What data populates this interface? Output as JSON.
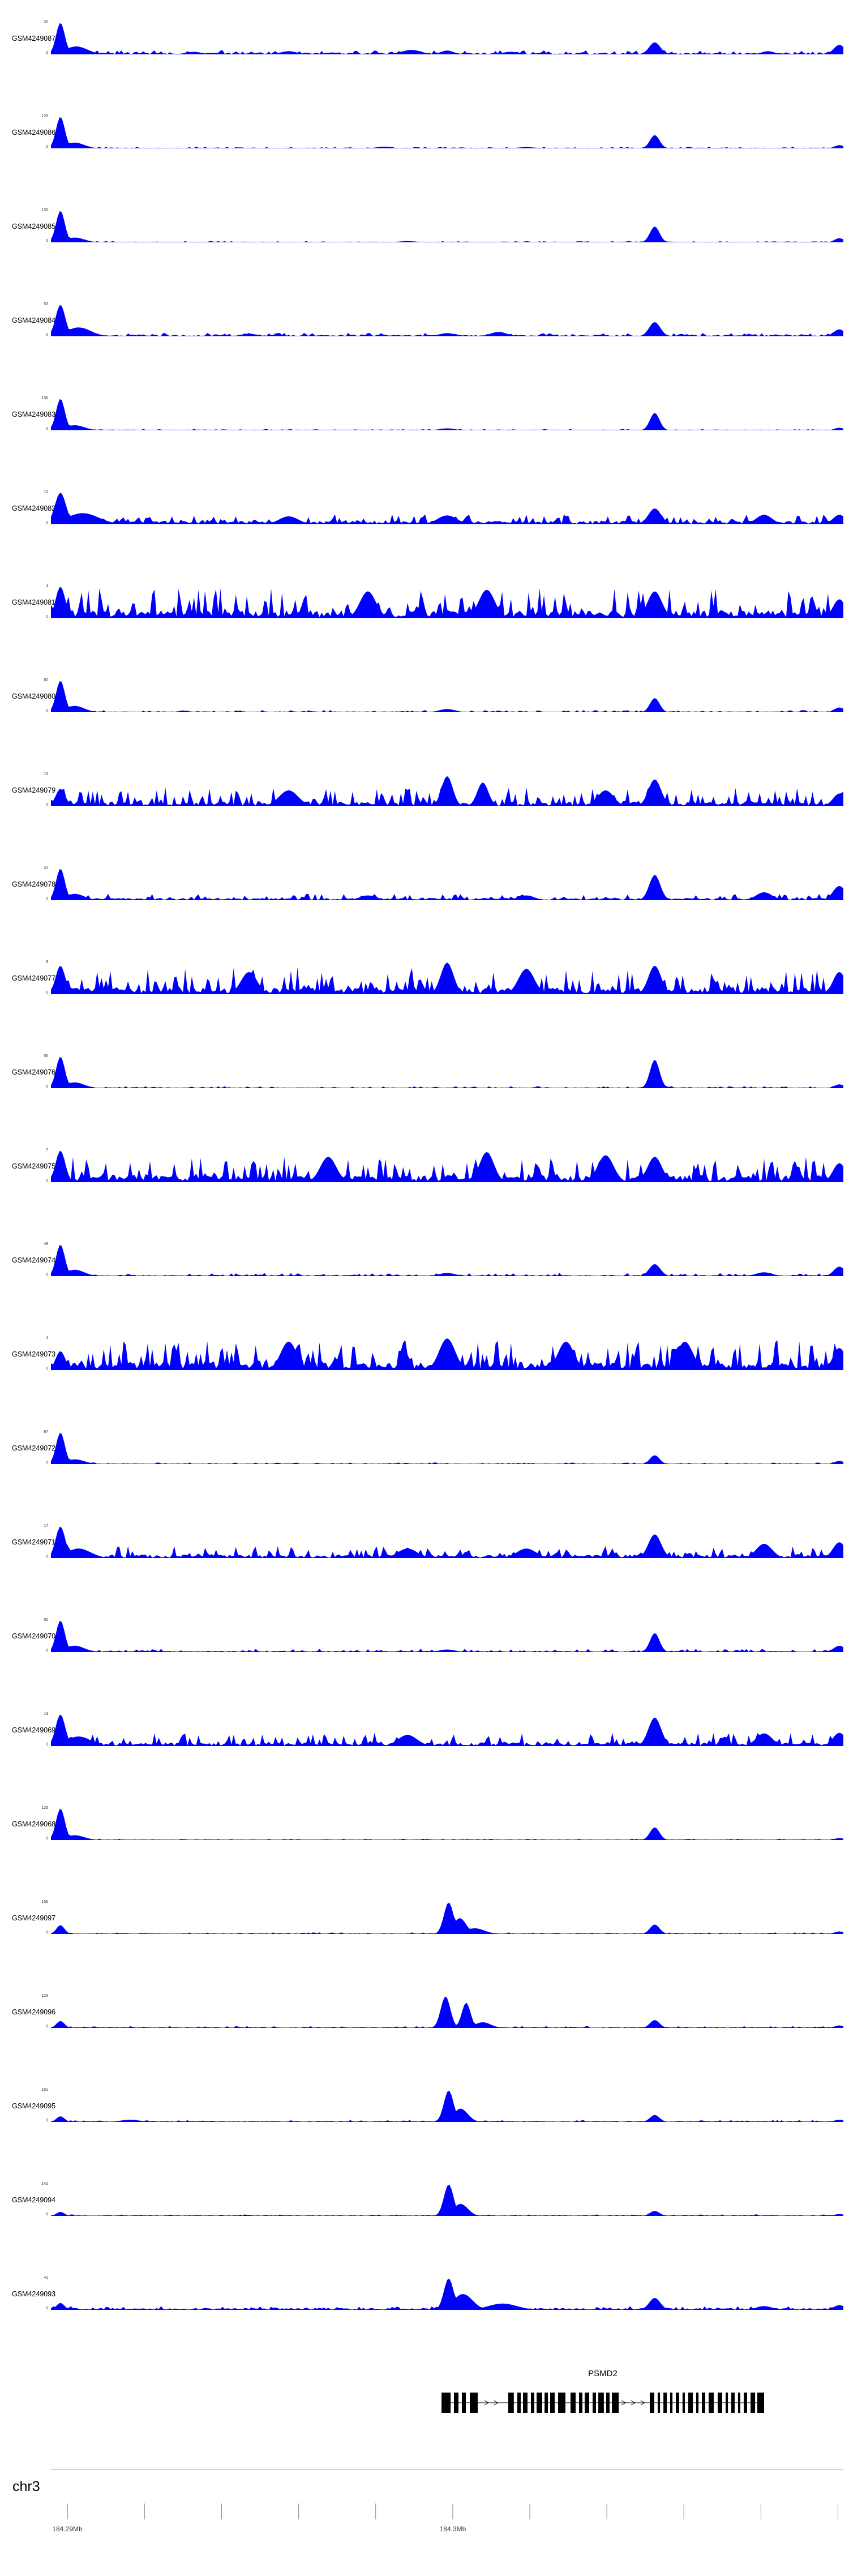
{
  "chart_data": {
    "type": "area",
    "description": "Stacked genome-browser coverage tracks (blue filled histograms) over chr3 around the PSMD2 locus, with a gene model track and genome coordinate axis at the bottom.",
    "signal_color": "#0000FF",
    "genome": {
      "chromosome": "chr3",
      "window_mb": [
        184.28957,
        184.31014
      ],
      "axis_ticks_mb": [
        184.29,
        184.292,
        184.294,
        184.296,
        184.298,
        184.3,
        184.302,
        184.304,
        184.306,
        184.308,
        184.31
      ],
      "axis_labels": [
        {
          "pos_mb": 184.29,
          "label": "184.29Mb"
        },
        {
          "pos_mb": 184.3,
          "label": "184.3Mb"
        }
      ]
    },
    "tracks": [
      {
        "label": "GSM4249087",
        "ymax": 30,
        "ymin": 0,
        "noise": 0.05,
        "spikes": 0.13,
        "seed": 101,
        "peaks": [
          [
            0.012,
            1.0,
            0.0055
          ],
          [
            0.032,
            0.25,
            0.014
          ],
          [
            0.18,
            0.08,
            0.01
          ],
          [
            0.3,
            0.1,
            0.01
          ],
          [
            0.455,
            0.14,
            0.012
          ],
          [
            0.5,
            0.12,
            0.008
          ],
          [
            0.58,
            0.08,
            0.01
          ],
          [
            0.762,
            0.38,
            0.007
          ],
          [
            0.905,
            0.1,
            0.008
          ],
          [
            0.995,
            0.3,
            0.007
          ]
        ]
      },
      {
        "label": "GSM4249086",
        "ymax": 129,
        "ymin": 0,
        "noise": 0.022,
        "spikes": 0.05,
        "seed": 102,
        "peaks": [
          [
            0.012,
            1.0,
            0.0055
          ],
          [
            0.03,
            0.18,
            0.012
          ],
          [
            0.42,
            0.05,
            0.01
          ],
          [
            0.6,
            0.04,
            0.01
          ],
          [
            0.762,
            0.42,
            0.006
          ],
          [
            0.995,
            0.1,
            0.006
          ]
        ]
      },
      {
        "label": "GSM4249085",
        "ymax": 135,
        "ymin": 0,
        "noise": 0.02,
        "spikes": 0.04,
        "seed": 103,
        "peaks": [
          [
            0.012,
            1.0,
            0.0055
          ],
          [
            0.03,
            0.15,
            0.012
          ],
          [
            0.45,
            0.04,
            0.01
          ],
          [
            0.762,
            0.5,
            0.006
          ],
          [
            0.995,
            0.13,
            0.006
          ]
        ]
      },
      {
        "label": "GSM4249084",
        "ymax": 53,
        "ymin": 0,
        "noise": 0.045,
        "spikes": 0.11,
        "seed": 104,
        "peaks": [
          [
            0.012,
            1.0,
            0.006
          ],
          [
            0.035,
            0.28,
            0.015
          ],
          [
            0.25,
            0.08,
            0.01
          ],
          [
            0.5,
            0.1,
            0.01
          ],
          [
            0.565,
            0.14,
            0.01
          ],
          [
            0.762,
            0.45,
            0.007
          ],
          [
            0.995,
            0.22,
            0.007
          ]
        ]
      },
      {
        "label": "GSM4249083",
        "ymax": 136,
        "ymin": 0,
        "noise": 0.02,
        "spikes": 0.045,
        "seed": 105,
        "peaks": [
          [
            0.012,
            1.0,
            0.0055
          ],
          [
            0.03,
            0.16,
            0.012
          ],
          [
            0.5,
            0.06,
            0.01
          ],
          [
            0.762,
            0.55,
            0.006
          ],
          [
            0.995,
            0.08,
            0.006
          ]
        ]
      },
      {
        "label": "GSM4249082",
        "ymax": 12,
        "ymin": 0,
        "noise": 0.11,
        "spikes": 0.32,
        "seed": 106,
        "peaks": [
          [
            0.012,
            1.0,
            0.007
          ],
          [
            0.04,
            0.35,
            0.02
          ],
          [
            0.3,
            0.25,
            0.012
          ],
          [
            0.5,
            0.28,
            0.012
          ],
          [
            0.762,
            0.5,
            0.008
          ],
          [
            0.9,
            0.3,
            0.01
          ],
          [
            0.995,
            0.3,
            0.008
          ]
        ]
      },
      {
        "label": "GSM4249081",
        "ymax": 4,
        "ymin": 0,
        "noise": 0.25,
        "spikes": 0.95,
        "seed": 107,
        "peaks": [
          [
            0.012,
            1.0,
            0.006
          ],
          [
            0.4,
            0.85,
            0.01
          ],
          [
            0.55,
            0.9,
            0.01
          ],
          [
            0.762,
            0.85,
            0.009
          ],
          [
            0.995,
            0.6,
            0.008
          ]
        ]
      },
      {
        "label": "GSM4249080",
        "ymax": 80,
        "ymin": 0,
        "noise": 0.028,
        "spikes": 0.07,
        "seed": 108,
        "peaks": [
          [
            0.012,
            1.0,
            0.0055
          ],
          [
            0.03,
            0.2,
            0.012
          ],
          [
            0.5,
            0.1,
            0.01
          ],
          [
            0.762,
            0.45,
            0.006
          ],
          [
            0.995,
            0.15,
            0.006
          ]
        ]
      },
      {
        "label": "GSM4249079",
        "ymax": 10,
        "ymin": 0,
        "noise": 0.14,
        "spikes": 0.6,
        "seed": 109,
        "peaks": [
          [
            0.012,
            0.55,
            0.006
          ],
          [
            0.3,
            0.5,
            0.012
          ],
          [
            0.5,
            0.95,
            0.007
          ],
          [
            0.545,
            0.75,
            0.007
          ],
          [
            0.7,
            0.5,
            0.01
          ],
          [
            0.762,
            0.85,
            0.008
          ],
          [
            0.995,
            0.4,
            0.008
          ]
        ]
      },
      {
        "label": "GSM4249078",
        "ymax": 41,
        "ymin": 0,
        "noise": 0.07,
        "spikes": 0.2,
        "seed": 110,
        "peaks": [
          [
            0.012,
            1.0,
            0.0055
          ],
          [
            0.03,
            0.2,
            0.012
          ],
          [
            0.4,
            0.15,
            0.01
          ],
          [
            0.6,
            0.15,
            0.01
          ],
          [
            0.762,
            0.8,
            0.007
          ],
          [
            0.9,
            0.25,
            0.01
          ],
          [
            0.995,
            0.45,
            0.008
          ]
        ]
      },
      {
        "label": "GSM4249077",
        "ymax": 9,
        "ymin": 0,
        "noise": 0.2,
        "spikes": 0.85,
        "seed": 111,
        "peaks": [
          [
            0.012,
            0.9,
            0.006
          ],
          [
            0.25,
            0.7,
            0.01
          ],
          [
            0.5,
            1.0,
            0.008
          ],
          [
            0.6,
            0.8,
            0.01
          ],
          [
            0.762,
            0.9,
            0.008
          ],
          [
            0.995,
            0.7,
            0.008
          ]
        ]
      },
      {
        "label": "GSM4249076",
        "ymax": 55,
        "ymin": 0,
        "noise": 0.025,
        "spikes": 0.06,
        "seed": 112,
        "peaks": [
          [
            0.012,
            1.0,
            0.0055
          ],
          [
            0.03,
            0.18,
            0.012
          ],
          [
            0.762,
            0.9,
            0.006
          ],
          [
            0.995,
            0.12,
            0.006
          ]
        ]
      },
      {
        "label": "GSM4249075",
        "ymax": 7,
        "ymin": 0,
        "noise": 0.22,
        "spikes": 0.8,
        "seed": 113,
        "peaks": [
          [
            0.012,
            1.0,
            0.006
          ],
          [
            0.35,
            0.8,
            0.01
          ],
          [
            0.55,
            0.95,
            0.009
          ],
          [
            0.7,
            0.85,
            0.01
          ],
          [
            0.762,
            0.8,
            0.009
          ],
          [
            0.995,
            0.6,
            0.008
          ]
        ]
      },
      {
        "label": "GSM4249074",
        "ymax": 49,
        "ymin": 0,
        "noise": 0.035,
        "spikes": 0.1,
        "seed": 114,
        "peaks": [
          [
            0.012,
            1.0,
            0.0055
          ],
          [
            0.03,
            0.2,
            0.012
          ],
          [
            0.5,
            0.1,
            0.01
          ],
          [
            0.762,
            0.38,
            0.007
          ],
          [
            0.9,
            0.12,
            0.01
          ],
          [
            0.995,
            0.3,
            0.007
          ]
        ]
      },
      {
        "label": "GSM4249073",
        "ymax": 4,
        "ymin": 0,
        "noise": 0.27,
        "spikes": 0.95,
        "seed": 115,
        "peaks": [
          [
            0.012,
            0.6,
            0.006
          ],
          [
            0.3,
            0.9,
            0.01
          ],
          [
            0.5,
            1.0,
            0.01
          ],
          [
            0.65,
            0.9,
            0.01
          ],
          [
            0.8,
            0.9,
            0.01
          ],
          [
            0.995,
            0.7,
            0.008
          ]
        ]
      },
      {
        "label": "GSM4249072",
        "ymax": 97,
        "ymin": 0,
        "noise": 0.02,
        "spikes": 0.05,
        "seed": 116,
        "peaks": [
          [
            0.012,
            1.0,
            0.0055
          ],
          [
            0.03,
            0.15,
            0.012
          ],
          [
            0.762,
            0.28,
            0.006
          ],
          [
            0.995,
            0.1,
            0.006
          ]
        ]
      },
      {
        "label": "GSM4249071",
        "ymax": 17,
        "ymin": 0,
        "noise": 0.11,
        "spikes": 0.38,
        "seed": 117,
        "peaks": [
          [
            0.012,
            1.0,
            0.006
          ],
          [
            0.035,
            0.3,
            0.015
          ],
          [
            0.45,
            0.3,
            0.012
          ],
          [
            0.6,
            0.3,
            0.012
          ],
          [
            0.762,
            0.75,
            0.008
          ],
          [
            0.9,
            0.45,
            0.01
          ],
          [
            0.995,
            0.5,
            0.008
          ]
        ]
      },
      {
        "label": "GSM4249070",
        "ymax": 50,
        "ymin": 0,
        "noise": 0.035,
        "spikes": 0.1,
        "seed": 118,
        "peaks": [
          [
            0.012,
            1.0,
            0.0055
          ],
          [
            0.03,
            0.2,
            0.012
          ],
          [
            0.5,
            0.08,
            0.01
          ],
          [
            0.762,
            0.6,
            0.006
          ],
          [
            0.995,
            0.2,
            0.007
          ]
        ]
      },
      {
        "label": "GSM4249069",
        "ymax": 13,
        "ymin": 0,
        "noise": 0.11,
        "spikes": 0.42,
        "seed": 119,
        "peaks": [
          [
            0.012,
            1.0,
            0.006
          ],
          [
            0.035,
            0.3,
            0.015
          ],
          [
            0.45,
            0.35,
            0.012
          ],
          [
            0.762,
            0.9,
            0.008
          ],
          [
            0.9,
            0.4,
            0.01
          ],
          [
            0.995,
            0.42,
            0.008
          ]
        ]
      },
      {
        "label": "GSM4249068",
        "ymax": 125,
        "ymin": 0,
        "noise": 0.018,
        "spikes": 0.04,
        "seed": 120,
        "peaks": [
          [
            0.012,
            1.0,
            0.0055
          ],
          [
            0.03,
            0.15,
            0.012
          ],
          [
            0.762,
            0.4,
            0.006
          ],
          [
            0.995,
            0.06,
            0.006
          ]
        ]
      },
      {
        "label": "GSM4249097",
        "ymax": 156,
        "ymin": 0,
        "noise": 0.022,
        "spikes": 0.05,
        "seed": 121,
        "peaks": [
          [
            0.012,
            0.28,
            0.005
          ],
          [
            0.502,
            1.0,
            0.006
          ],
          [
            0.516,
            0.5,
            0.008
          ],
          [
            0.535,
            0.18,
            0.012
          ],
          [
            0.762,
            0.3,
            0.006
          ],
          [
            0.995,
            0.08,
            0.006
          ]
        ]
      },
      {
        "label": "GSM4249096",
        "ymax": 123,
        "ymin": 0,
        "noise": 0.028,
        "spikes": 0.06,
        "seed": 122,
        "peaks": [
          [
            0.012,
            0.22,
            0.005
          ],
          [
            0.498,
            1.0,
            0.006
          ],
          [
            0.524,
            0.8,
            0.0055
          ],
          [
            0.545,
            0.18,
            0.01
          ],
          [
            0.762,
            0.25,
            0.006
          ],
          [
            0.995,
            0.08,
            0.006
          ]
        ]
      },
      {
        "label": "GSM4249095",
        "ymax": 151,
        "ymin": 0,
        "noise": 0.028,
        "spikes": 0.06,
        "seed": 123,
        "peaks": [
          [
            0.012,
            0.18,
            0.005
          ],
          [
            0.1,
            0.07,
            0.012
          ],
          [
            0.502,
            1.0,
            0.006
          ],
          [
            0.517,
            0.42,
            0.009
          ],
          [
            0.762,
            0.22,
            0.006
          ],
          [
            0.995,
            0.07,
            0.006
          ]
        ]
      },
      {
        "label": "GSM4249094",
        "ymax": 142,
        "ymin": 0,
        "noise": 0.024,
        "spikes": 0.05,
        "seed": 124,
        "peaks": [
          [
            0.012,
            0.13,
            0.005
          ],
          [
            0.502,
            1.0,
            0.006
          ],
          [
            0.517,
            0.38,
            0.009
          ],
          [
            0.762,
            0.16,
            0.006
          ],
          [
            0.995,
            0.06,
            0.006
          ]
        ]
      },
      {
        "label": "GSM4249093",
        "ymax": 41,
        "ymin": 0,
        "noise": 0.055,
        "spikes": 0.12,
        "seed": 125,
        "peaks": [
          [
            0.012,
            0.22,
            0.005
          ],
          [
            0.502,
            1.0,
            0.006
          ],
          [
            0.52,
            0.5,
            0.012
          ],
          [
            0.57,
            0.2,
            0.018
          ],
          [
            0.762,
            0.38,
            0.007
          ],
          [
            0.9,
            0.12,
            0.01
          ],
          [
            0.995,
            0.15,
            0.007
          ]
        ]
      }
    ],
    "gene_track": {
      "gene": "PSMD2",
      "color": "#000000",
      "strand": "+",
      "span": [
        0.4929,
        0.9
      ],
      "exons": [
        [
          0.4929,
          0.0114
        ],
        [
          0.5086,
          0.0057
        ],
        [
          0.5186,
          0.005
        ],
        [
          0.5286,
          0.01
        ],
        [
          0.5771,
          0.0071
        ],
        [
          0.5886,
          0.0043
        ],
        [
          0.5957,
          0.0057
        ],
        [
          0.6057,
          0.0043
        ],
        [
          0.6129,
          0.0071
        ],
        [
          0.6229,
          0.0043
        ],
        [
          0.63,
          0.0057
        ],
        [
          0.64,
          0.0093
        ],
        [
          0.6557,
          0.0064
        ],
        [
          0.6664,
          0.0043
        ],
        [
          0.6736,
          0.0057
        ],
        [
          0.6836,
          0.0043
        ],
        [
          0.6907,
          0.0071
        ],
        [
          0.7007,
          0.0043
        ],
        [
          0.7079,
          0.0086
        ],
        [
          0.7557,
          0.0057
        ],
        [
          0.7657,
          0.0029
        ],
        [
          0.7729,
          0.0043
        ],
        [
          0.7814,
          0.0029
        ],
        [
          0.7886,
          0.0043
        ],
        [
          0.7971,
          0.0029
        ],
        [
          0.8043,
          0.0057
        ],
        [
          0.8143,
          0.0029
        ],
        [
          0.8214,
          0.0043
        ],
        [
          0.83,
          0.0064
        ],
        [
          0.8414,
          0.0057
        ],
        [
          0.8514,
          0.0029
        ],
        [
          0.8586,
          0.0043
        ],
        [
          0.8671,
          0.0029
        ],
        [
          0.8743,
          0.0043
        ],
        [
          0.8829,
          0.0057
        ],
        [
          0.8914,
          0.0086
        ]
      ],
      "arrows": [
        0.55,
        0.562,
        0.723,
        0.735,
        0.747
      ]
    }
  }
}
